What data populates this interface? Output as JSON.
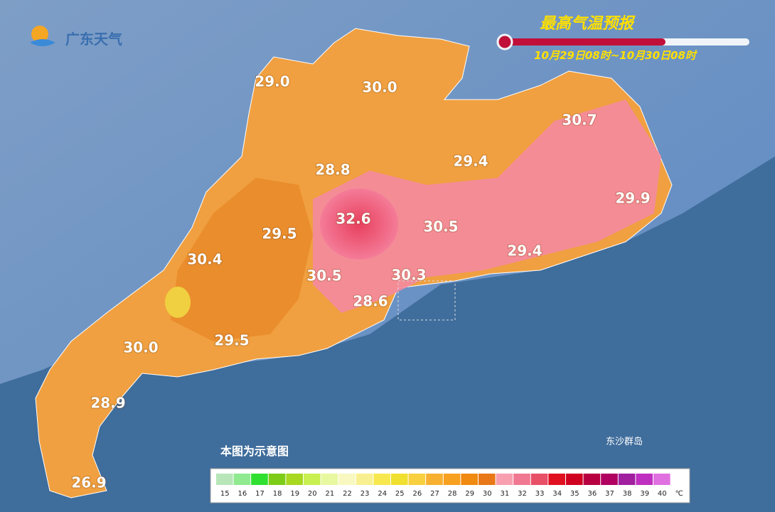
{
  "logo_text": "广东天气",
  "title": "最高气温预报",
  "period": "10月29日08时~10月30日08时",
  "temperature_labels": [
    "29.0",
    "30.0",
    "30.7",
    "29.4",
    "28.8",
    "29.9",
    "32.6",
    "30.5",
    "29.5",
    "30.4",
    "29.4",
    "30.5",
    "30.3",
    "28.6",
    "30.0",
    "29.5",
    "28.9",
    "26.9"
  ],
  "note": "本图为示意图",
  "island_label": "东沙群岛",
  "legend": {
    "labels": [
      15,
      16,
      17,
      18,
      19,
      20,
      21,
      22,
      23,
      24,
      25,
      26,
      27,
      28,
      29,
      30,
      31,
      32,
      33,
      34,
      35,
      36,
      37,
      38,
      39,
      40
    ],
    "colors": [
      "#b8e6b8",
      "#90ea90",
      "#30e030",
      "#7ccc18",
      "#a8d820",
      "#c8f050",
      "#e8f8a0",
      "#f8f8c0",
      "#f8f090",
      "#f8e850",
      "#f0e030",
      "#f8d040",
      "#f8b030",
      "#f8a020",
      "#f08a10",
      "#e87818",
      "#f8a0b0",
      "#f07890",
      "#e85068",
      "#e01020",
      "#d00020",
      "#b80040",
      "#b00060",
      "#a020a0",
      "#c030c0",
      "#e070e0"
    ],
    "unit": "℃"
  }
}
